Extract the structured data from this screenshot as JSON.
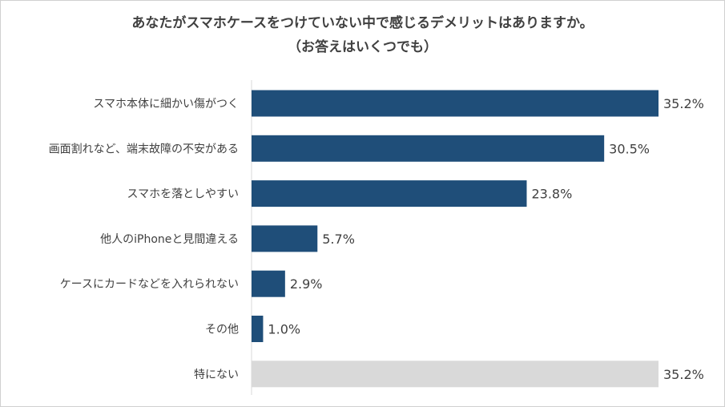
{
  "chart_data": {
    "type": "bar",
    "orientation": "horizontal",
    "title": "あなたがスマホケースをつけていない中で感じるデメリットはありますか。",
    "subtitle": "（お答えはいくつでも）",
    "categories": [
      "スマホ本体に細かい傷がつく",
      "画面割れなど、端末故障の不安がある",
      "スマホを落としやすい",
      "他人のiPhoneと見間違える",
      "ケースにカードなどを入れられない",
      "その他",
      "特にない"
    ],
    "values": [
      35.2,
      30.5,
      23.8,
      5.7,
      2.9,
      1.0,
      35.2
    ],
    "value_labels": [
      "35.2%",
      "30.5%",
      "23.8%",
      "5.7%",
      "2.9%",
      "1.0%",
      "35.2%"
    ],
    "bar_colors": [
      "#1f4e79",
      "#1f4e79",
      "#1f4e79",
      "#1f4e79",
      "#1f4e79",
      "#1f4e79",
      "#d9d9d9"
    ],
    "xlim": [
      0,
      35.2
    ],
    "grid": false,
    "legend": "none"
  }
}
